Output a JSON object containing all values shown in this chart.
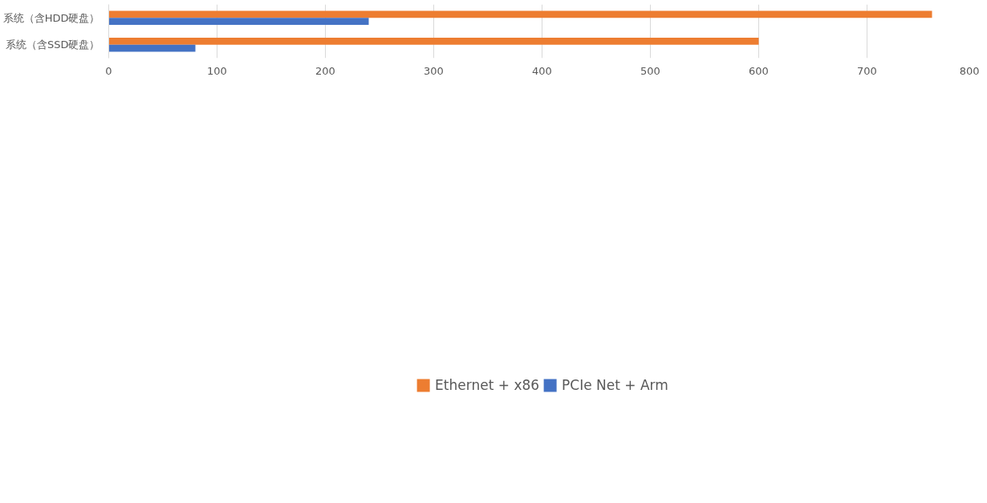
{
  "chart_data": {
    "type": "bar",
    "orientation": "horizontal",
    "categories": [
      "系统（含HDD硬盘）",
      "系统（含SSD硬盘）"
    ],
    "series": [
      {
        "name": "Ethernet + x86",
        "color": "#ed7d31",
        "values": [
          760,
          600
        ]
      },
      {
        "name": "PCIe Net + Arm",
        "color": "#4472c4",
        "values": [
          240,
          80
        ]
      }
    ],
    "xlim": [
      0,
      800
    ],
    "xticks": [
      0,
      100,
      200,
      300,
      400,
      500,
      600,
      700,
      800
    ],
    "grid": "x",
    "legend": "bottom"
  }
}
